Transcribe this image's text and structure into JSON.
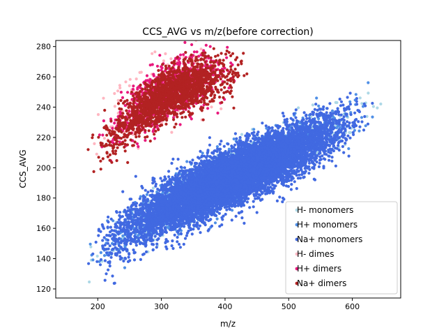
{
  "chart_data": {
    "type": "scatter",
    "title": "CCS_AVG vs m/z(before correction)",
    "xlabel": "m/z",
    "ylabel": "CCS_AVG",
    "xlim": [
      134,
      676
    ],
    "ylim": [
      114,
      284
    ],
    "x_ticks": [
      200,
      300,
      400,
      500,
      600
    ],
    "y_ticks": [
      120,
      140,
      160,
      180,
      200,
      220,
      240,
      260,
      280
    ],
    "grid": false,
    "legend_position": "lower-right",
    "series": [
      {
        "name": "H- monomers",
        "color": "#add8e6",
        "centroid_x": [
          180,
          250,
          320,
          400,
          480,
          560,
          640
        ],
        "centroid_y": [
          138,
          158,
          176,
          193,
          210,
          226,
          242
        ],
        "x_range": [
          165,
          665
        ],
        "spread": 8,
        "count": 900,
        "seed": 11
      },
      {
        "name": "H+ monomers",
        "color": "#4f8fe6",
        "centroid_x": [
          180,
          250,
          320,
          400,
          480,
          560,
          640
        ],
        "centroid_y": [
          140,
          159,
          177,
          194,
          211,
          228,
          243
        ],
        "x_range": [
          160,
          660
        ],
        "spread": 8,
        "count": 1500,
        "seed": 22
      },
      {
        "name": "Na+ monomers",
        "color": "#4169e1",
        "centroid_x": [
          200,
          260,
          320,
          380,
          440,
          500,
          520,
          560,
          620
        ],
        "centroid_y": [
          145,
          162,
          176,
          188,
          199,
          210,
          214,
          222,
          234
        ],
        "x_range": [
          180,
          640
        ],
        "spread": 9,
        "count": 9000,
        "seed": 33
      },
      {
        "name": "H- dimes",
        "color": "#ffb6c1",
        "centroid_x": [
          170,
          230,
          290,
          350,
          410
        ],
        "centroid_y": [
          210,
          235,
          252,
          262,
          264
        ],
        "x_range": [
          160,
          420
        ],
        "spread": 14,
        "count": 180,
        "seed": 44
      },
      {
        "name": "H+ dimers",
        "color": "#e8197d",
        "centroid_x": [
          200,
          260,
          320,
          380,
          430
        ],
        "centroid_y": [
          214,
          238,
          254,
          262,
          264
        ],
        "x_range": [
          190,
          430
        ],
        "spread": 9,
        "count": 900,
        "seed": 55
      },
      {
        "name": "Na+ dimers",
        "color": "#b22222",
        "centroid_x": [
          190,
          250,
          310,
          370,
          420,
          450
        ],
        "centroid_y": [
          206,
          232,
          249,
          258,
          262,
          259
        ],
        "x_range": [
          180,
          450
        ],
        "spread": 8,
        "count": 1800,
        "seed": 66
      }
    ]
  }
}
